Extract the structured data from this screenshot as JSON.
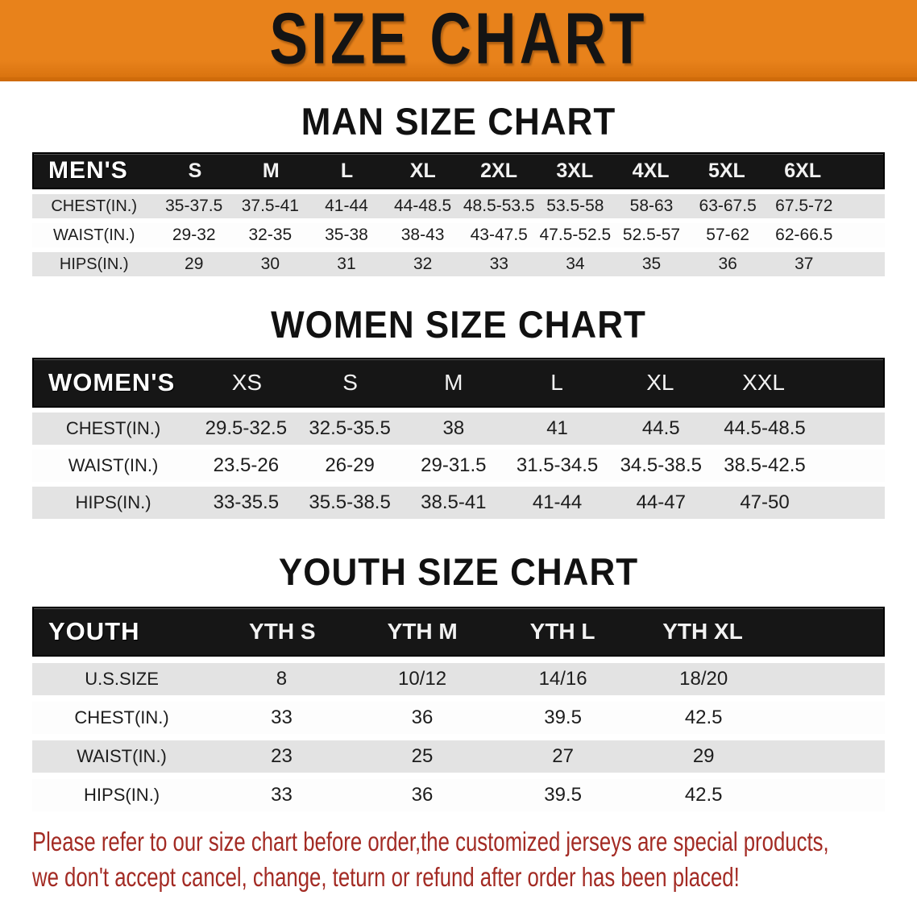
{
  "banner": {
    "title": "SIZE CHART"
  },
  "colors": {
    "banner_bg": "#E8821B",
    "table_head_bg": "#161616",
    "row_shaded_bg": "#E3E3E3",
    "disclaimer_color": "#A32B24"
  },
  "sections": [
    {
      "id": "man",
      "title": "MAN SIZE CHART",
      "table": {
        "header": [
          "MEN'S",
          "S",
          "M",
          "L",
          "XL",
          "2XL",
          "3XL",
          "4XL",
          "5XL",
          "6XL"
        ],
        "rows": [
          {
            "label": "CHEST(IN.)",
            "values": [
              "35-37.5",
              "37.5-41",
              "41-44",
              "44-48.5",
              "48.5-53.5",
              "53.5-58",
              "58-63",
              "63-67.5",
              "67.5-72"
            ]
          },
          {
            "label": "WAIST(IN.)",
            "values": [
              "29-32",
              "32-35",
              "35-38",
              "38-43",
              "43-47.5",
              "47.5-52.5",
              "52.5-57",
              "57-62",
              "62-66.5"
            ]
          },
          {
            "label": "HIPS(IN.)",
            "values": [
              "29",
              "30",
              "31",
              "32",
              "33",
              "34",
              "35",
              "36",
              "37"
            ]
          }
        ]
      }
    },
    {
      "id": "women",
      "title": "WOMEN SIZE CHART",
      "table": {
        "header": [
          "WOMEN'S",
          "XS",
          "S",
          "M",
          "L",
          "XL",
          "XXL"
        ],
        "rows": [
          {
            "label": "CHEST(IN.)",
            "values": [
              "29.5-32.5",
              "32.5-35.5",
              "38",
              "41",
              "44.5",
              "44.5-48.5"
            ]
          },
          {
            "label": "WAIST(IN.)",
            "values": [
              "23.5-26",
              "26-29",
              "29-31.5",
              "31.5-34.5",
              "34.5-38.5",
              "38.5-42.5"
            ]
          },
          {
            "label": "HIPS(IN.)",
            "values": [
              "33-35.5",
              "35.5-38.5",
              "38.5-41",
              "41-44",
              "44-47",
              "47-50"
            ]
          }
        ]
      }
    },
    {
      "id": "youth",
      "title": "YOUTH SIZE CHART",
      "table": {
        "header": [
          "YOUTH",
          "YTH S",
          "YTH M",
          "YTH L",
          "YTH XL"
        ],
        "rows": [
          {
            "label": "U.S.SIZE",
            "values": [
              "8",
              "10/12",
              "14/16",
              "18/20"
            ]
          },
          {
            "label": "CHEST(IN.)",
            "values": [
              "33",
              "36",
              "39.5",
              "42.5"
            ]
          },
          {
            "label": "WAIST(IN.)",
            "values": [
              "23",
              "25",
              "27",
              "29"
            ]
          },
          {
            "label": "HIPS(IN.)",
            "values": [
              "33",
              "36",
              "39.5",
              "42.5"
            ]
          }
        ]
      }
    }
  ],
  "disclaimer": {
    "line1": "Please refer to our size chart before order,the customized jerseys are special products,",
    "line2": "we don't accept cancel, change, teturn or refund after order has been placed!"
  }
}
